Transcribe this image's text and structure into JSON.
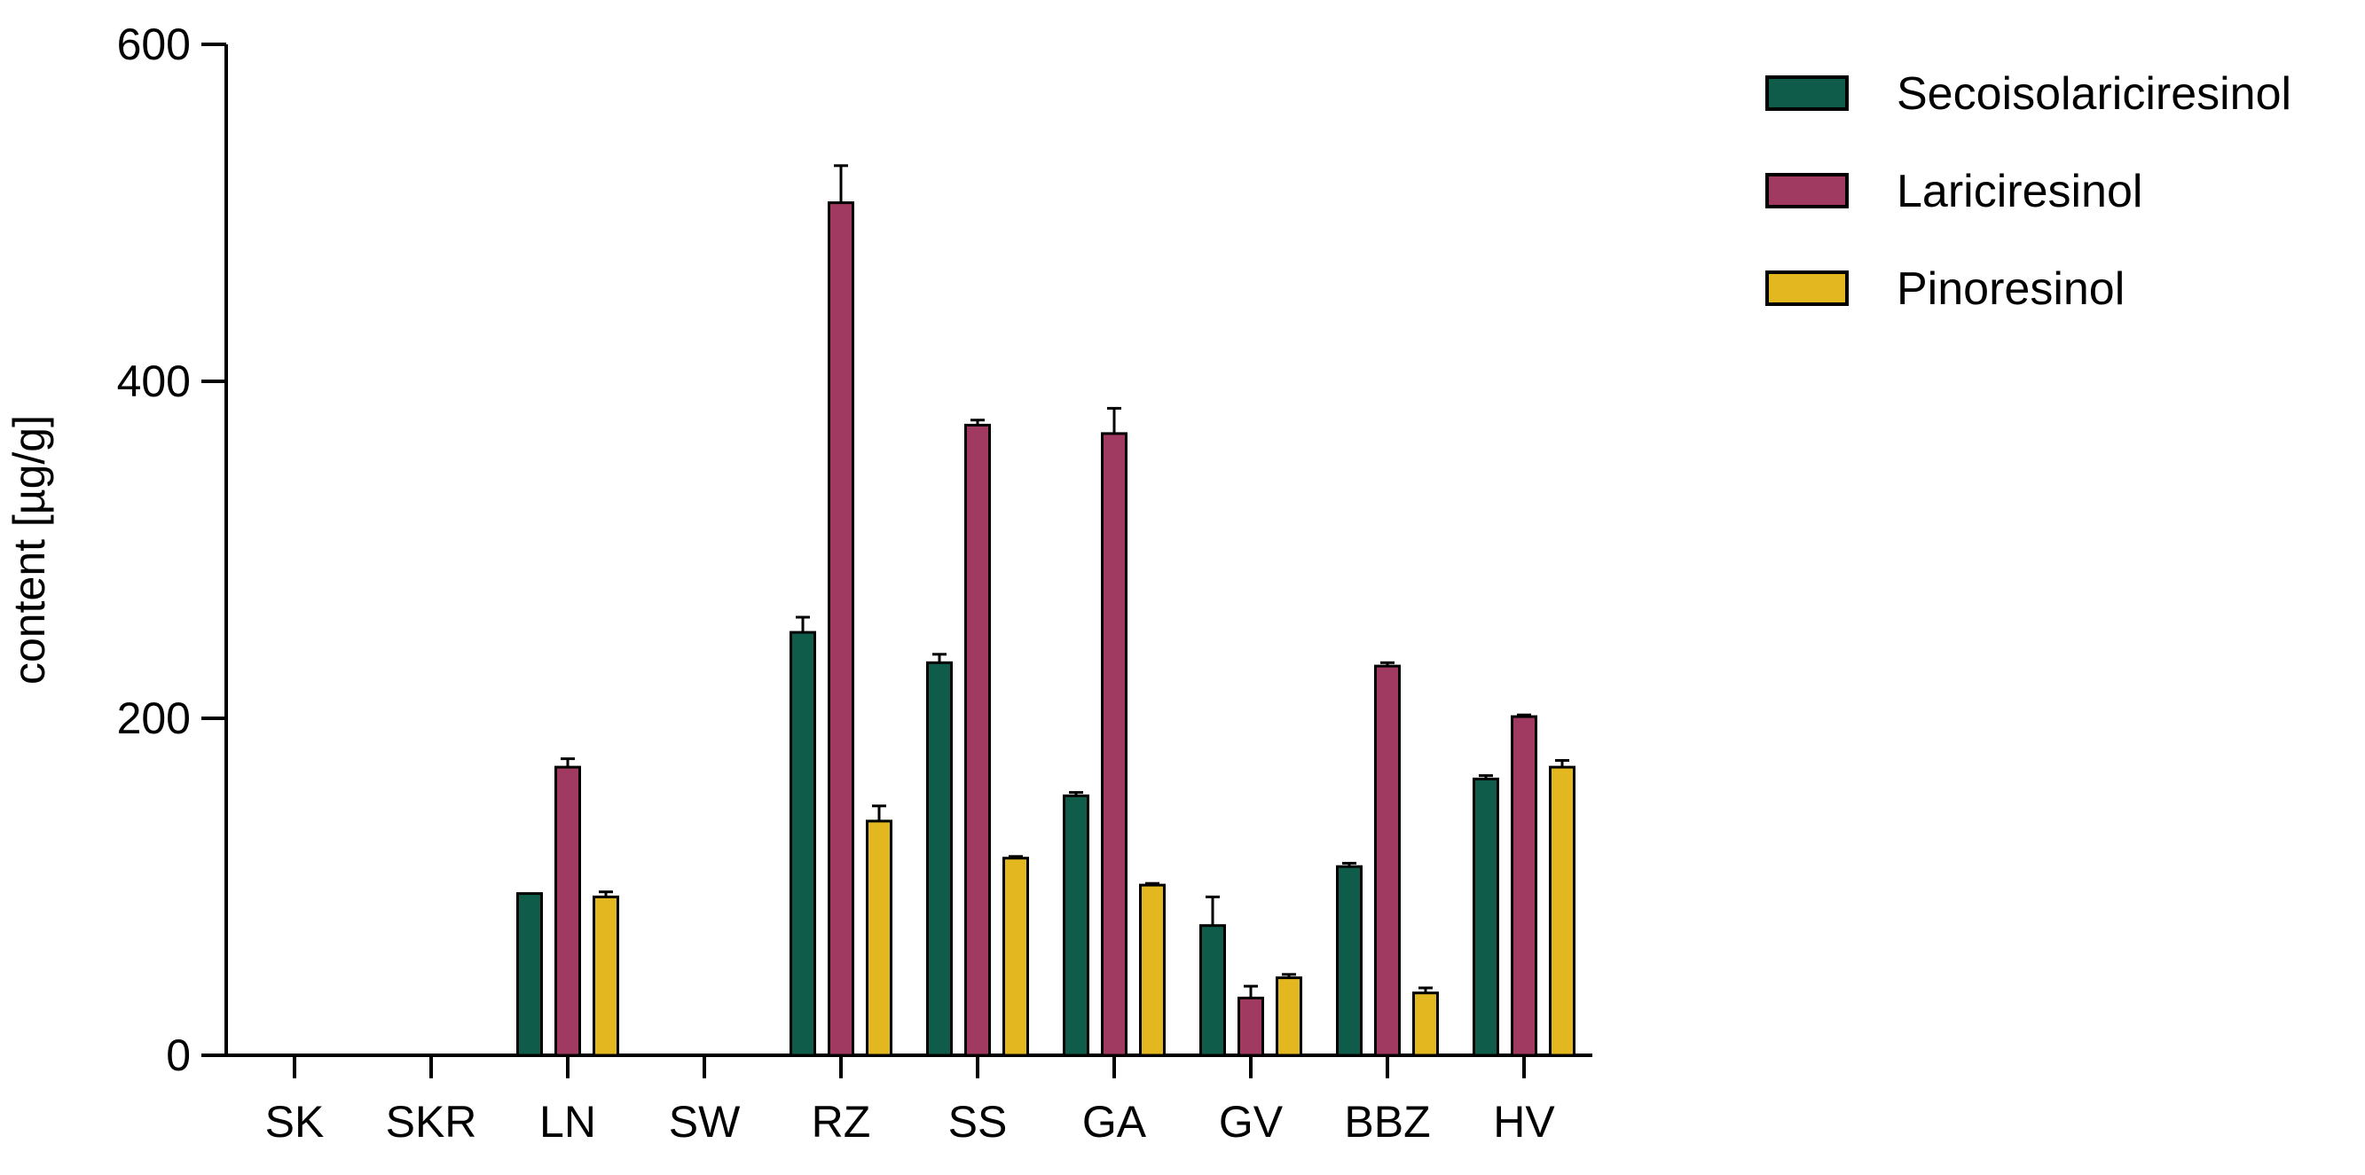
{
  "chart_data": {
    "type": "bar",
    "ylabel": "content [µg/g]",
    "xlabel": "",
    "ylim": [
      0,
      600
    ],
    "yticks": [
      0,
      200,
      400,
      600
    ],
    "grid": false,
    "legend_position": "top-right",
    "categories": [
      "SK",
      "SKR",
      "LN",
      "SW",
      "RZ",
      "SS",
      "GA",
      "GV",
      "BBZ",
      "HV"
    ],
    "series": [
      {
        "name": "Secoisolariciresinol",
        "color": "#0f5c4a",
        "values": [
          0,
          0,
          96,
          0,
          251,
          233,
          154,
          77,
          112,
          164
        ],
        "errors": [
          0,
          0,
          0,
          0,
          9,
          5,
          2,
          17,
          2,
          2
        ]
      },
      {
        "name": "Lariciresinol",
        "color": "#a13a60",
        "values": [
          0,
          0,
          171,
          0,
          506,
          374,
          369,
          34,
          231,
          201
        ],
        "errors": [
          0,
          0,
          5,
          0,
          22,
          3,
          15,
          7,
          2,
          1
        ]
      },
      {
        "name": "Pinoresinol",
        "color": "#e3b71f",
        "values": [
          0,
          0,
          94,
          0,
          139,
          117,
          101,
          46,
          37,
          171
        ],
        "errors": [
          0,
          0,
          3,
          0,
          9,
          1,
          1,
          2,
          3,
          4
        ]
      }
    ]
  }
}
